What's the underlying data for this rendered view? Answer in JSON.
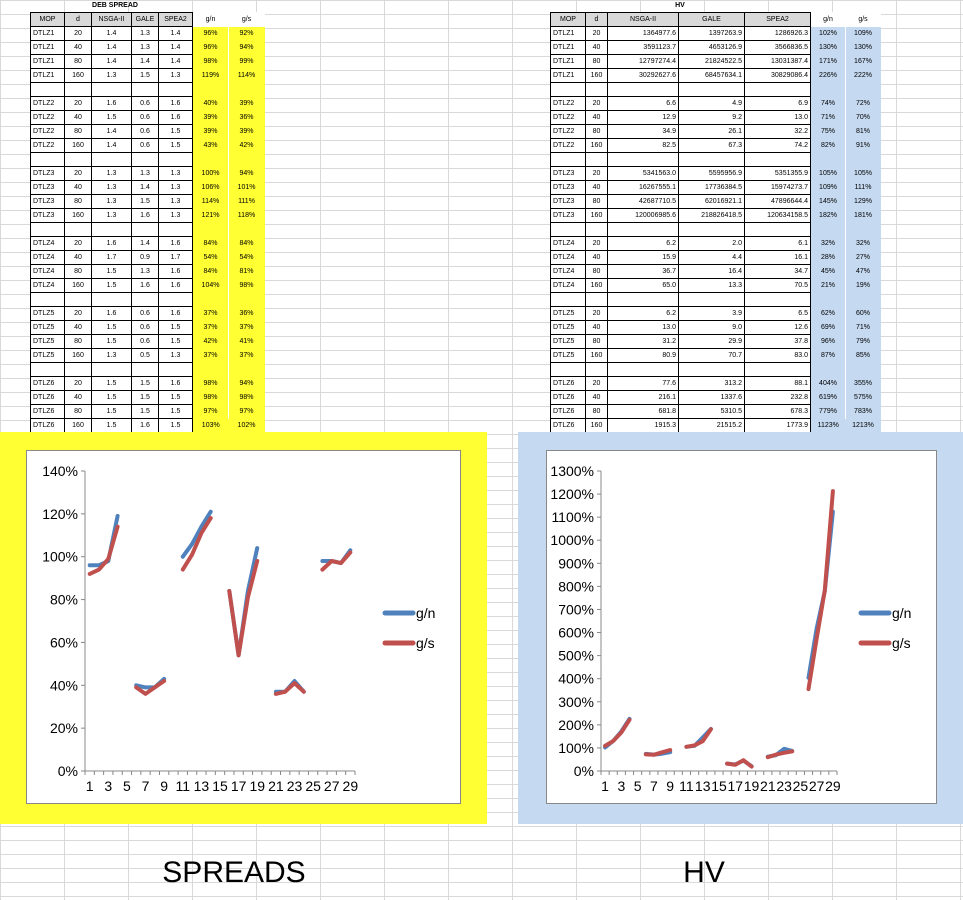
{
  "spread_table": {
    "title": "DEB SPREAD",
    "headers": [
      "MOP",
      "d",
      "NSGA-II",
      "GALE",
      "SPEA2",
      "g/n",
      "g/s"
    ],
    "groups": [
      [
        [
          "DTLZ1",
          "20",
          "1.4",
          "1.3",
          "1.4",
          "96%",
          "92%"
        ],
        [
          "DTLZ1",
          "40",
          "1.4",
          "1.3",
          "1.4",
          "96%",
          "94%"
        ],
        [
          "DTLZ1",
          "80",
          "1.4",
          "1.4",
          "1.4",
          "98%",
          "99%"
        ],
        [
          "DTLZ1",
          "160",
          "1.3",
          "1.5",
          "1.3",
          "119%",
          "114%"
        ]
      ],
      [
        [
          "DTLZ2",
          "20",
          "1.6",
          "0.6",
          "1.6",
          "40%",
          "39%"
        ],
        [
          "DTLZ2",
          "40",
          "1.5",
          "0.6",
          "1.6",
          "39%",
          "36%"
        ],
        [
          "DTLZ2",
          "80",
          "1.4",
          "0.6",
          "1.5",
          "39%",
          "39%"
        ],
        [
          "DTLZ2",
          "160",
          "1.4",
          "0.6",
          "1.5",
          "43%",
          "42%"
        ]
      ],
      [
        [
          "DTLZ3",
          "20",
          "1.3",
          "1.3",
          "1.3",
          "100%",
          "94%"
        ],
        [
          "DTLZ3",
          "40",
          "1.3",
          "1.4",
          "1.3",
          "106%",
          "101%"
        ],
        [
          "DTLZ3",
          "80",
          "1.3",
          "1.5",
          "1.3",
          "114%",
          "111%"
        ],
        [
          "DTLZ3",
          "160",
          "1.3",
          "1.6",
          "1.3",
          "121%",
          "118%"
        ]
      ],
      [
        [
          "DTLZ4",
          "20",
          "1.6",
          "1.4",
          "1.6",
          "84%",
          "84%"
        ],
        [
          "DTLZ4",
          "40",
          "1.7",
          "0.9",
          "1.7",
          "54%",
          "54%"
        ],
        [
          "DTLZ4",
          "80",
          "1.5",
          "1.3",
          "1.6",
          "84%",
          "81%"
        ],
        [
          "DTLZ4",
          "160",
          "1.5",
          "1.6",
          "1.6",
          "104%",
          "98%"
        ]
      ],
      [
        [
          "DTLZ5",
          "20",
          "1.6",
          "0.6",
          "1.6",
          "37%",
          "36%"
        ],
        [
          "DTLZ5",
          "40",
          "1.5",
          "0.6",
          "1.5",
          "37%",
          "37%"
        ],
        [
          "DTLZ5",
          "80",
          "1.5",
          "0.6",
          "1.5",
          "42%",
          "41%"
        ],
        [
          "DTLZ5",
          "160",
          "1.3",
          "0.5",
          "1.3",
          "37%",
          "37%"
        ]
      ],
      [
        [
          "DTLZ6",
          "20",
          "1.5",
          "1.5",
          "1.6",
          "98%",
          "94%"
        ],
        [
          "DTLZ6",
          "40",
          "1.5",
          "1.5",
          "1.5",
          "98%",
          "98%"
        ],
        [
          "DTLZ6",
          "80",
          "1.5",
          "1.5",
          "1.5",
          "97%",
          "97%"
        ],
        [
          "DTLZ6",
          "160",
          "1.5",
          "1.6",
          "1.5",
          "103%",
          "102%"
        ]
      ]
    ]
  },
  "hv_table": {
    "title": "HV",
    "headers": [
      "MOP",
      "d",
      "NSGA-II",
      "GALE",
      "SPEA2",
      "g/n",
      "g/s"
    ],
    "groups": [
      [
        [
          "DTLZ1",
          "20",
          "1364977.6",
          "1397263.9",
          "1286926.3",
          "102%",
          "109%"
        ],
        [
          "DTLZ1",
          "40",
          "3591123.7",
          "4653126.9",
          "3566836.5",
          "130%",
          "130%"
        ],
        [
          "DTLZ1",
          "80",
          "12797274.4",
          "21824522.5",
          "13031387.4",
          "171%",
          "167%"
        ],
        [
          "DTLZ1",
          "160",
          "30292627.6",
          "68457634.1",
          "30829086.4",
          "226%",
          "222%"
        ]
      ],
      [
        [
          "DTLZ2",
          "20",
          "6.6",
          "4.9",
          "6.9",
          "74%",
          "72%"
        ],
        [
          "DTLZ2",
          "40",
          "12.9",
          "9.2",
          "13.0",
          "71%",
          "70%"
        ],
        [
          "DTLZ2",
          "80",
          "34.9",
          "26.1",
          "32.2",
          "75%",
          "81%"
        ],
        [
          "DTLZ2",
          "160",
          "82.5",
          "67.3",
          "74.2",
          "82%",
          "91%"
        ]
      ],
      [
        [
          "DTLZ3",
          "20",
          "5341563.0",
          "5595956.9",
          "5351355.9",
          "105%",
          "105%"
        ],
        [
          "DTLZ3",
          "40",
          "16267555.1",
          "17736384.5",
          "15974273.7",
          "109%",
          "111%"
        ],
        [
          "DTLZ3",
          "80",
          "42687710.5",
          "62016921.1",
          "47896644.4",
          "145%",
          "129%"
        ],
        [
          "DTLZ3",
          "160",
          "120006985.6",
          "218826418.5",
          "120634158.5",
          "182%",
          "181%"
        ]
      ],
      [
        [
          "DTLZ4",
          "20",
          "6.2",
          "2.0",
          "6.1",
          "32%",
          "32%"
        ],
        [
          "DTLZ4",
          "40",
          "15.9",
          "4.4",
          "16.1",
          "28%",
          "27%"
        ],
        [
          "DTLZ4",
          "80",
          "36.7",
          "16.4",
          "34.7",
          "45%",
          "47%"
        ],
        [
          "DTLZ4",
          "160",
          "65.0",
          "13.3",
          "70.5",
          "21%",
          "19%"
        ]
      ],
      [
        [
          "DTLZ5",
          "20",
          "6.2",
          "3.9",
          "6.5",
          "62%",
          "60%"
        ],
        [
          "DTLZ5",
          "40",
          "13.0",
          "9.0",
          "12.6",
          "69%",
          "71%"
        ],
        [
          "DTLZ5",
          "80",
          "31.2",
          "29.9",
          "37.8",
          "96%",
          "79%"
        ],
        [
          "DTLZ5",
          "160",
          "80.9",
          "70.7",
          "83.0",
          "87%",
          "85%"
        ]
      ],
      [
        [
          "DTLZ6",
          "20",
          "77.6",
          "313.2",
          "88.1",
          "404%",
          "355%"
        ],
        [
          "DTLZ6",
          "40",
          "216.1",
          "1337.6",
          "232.8",
          "619%",
          "575%"
        ],
        [
          "DTLZ6",
          "80",
          "681.8",
          "5310.5",
          "678.3",
          "779%",
          "783%"
        ],
        [
          "DTLZ6",
          "160",
          "1915.3",
          "21515.2",
          "1773.9",
          "1123%",
          "1213%"
        ]
      ]
    ]
  },
  "labels": {
    "spreads": "SPREADS",
    "hv": "HV"
  },
  "colors": {
    "yellow": "#ffff33",
    "blue_panel": "#c5d9f1",
    "series_gn": "#4f81bd",
    "series_gs": "#c0504d"
  },
  "chart_data": [
    {
      "type": "line",
      "x": [
        1,
        2,
        3,
        4,
        5,
        6,
        7,
        8,
        9,
        10,
        11,
        12,
        13,
        14,
        15,
        16,
        17,
        18,
        19,
        20,
        21,
        22,
        23,
        24,
        25,
        26,
        27,
        28,
        29
      ],
      "x_tick_labels": [
        "1",
        "3",
        "5",
        "7",
        "9",
        "11",
        "13",
        "15",
        "17",
        "19",
        "21",
        "23",
        "25",
        "27",
        "29"
      ],
      "y_tick_labels": [
        "0%",
        "20%",
        "40%",
        "60%",
        "80%",
        "100%",
        "120%",
        "140%"
      ],
      "ylim": [
        0,
        1.4
      ],
      "legend_position": "right",
      "series": [
        {
          "name": "g/n",
          "values": [
            0.96,
            0.96,
            0.98,
            1.19,
            null,
            0.4,
            0.39,
            0.39,
            0.43,
            null,
            1.0,
            1.06,
            1.14,
            1.21,
            null,
            0.84,
            0.54,
            0.84,
            1.04,
            null,
            0.37,
            0.37,
            0.42,
            0.37,
            null,
            0.98,
            0.98,
            0.97,
            1.03
          ]
        },
        {
          "name": "g/s",
          "values": [
            0.92,
            0.94,
            0.99,
            1.14,
            null,
            0.39,
            0.36,
            0.39,
            0.42,
            null,
            0.94,
            1.01,
            1.11,
            1.18,
            null,
            0.84,
            0.54,
            0.81,
            0.98,
            null,
            0.36,
            0.37,
            0.41,
            0.37,
            null,
            0.94,
            0.98,
            0.97,
            1.02
          ]
        }
      ]
    },
    {
      "type": "line",
      "x": [
        1,
        2,
        3,
        4,
        5,
        6,
        7,
        8,
        9,
        10,
        11,
        12,
        13,
        14,
        15,
        16,
        17,
        18,
        19,
        20,
        21,
        22,
        23,
        24,
        25,
        26,
        27,
        28,
        29
      ],
      "x_tick_labels": [
        "1",
        "3",
        "5",
        "7",
        "9",
        "11",
        "13",
        "15",
        "17",
        "19",
        "21",
        "23",
        "25",
        "27",
        "29"
      ],
      "y_tick_labels": [
        "0%",
        "100%",
        "200%",
        "300%",
        "400%",
        "500%",
        "600%",
        "700%",
        "800%",
        "900%",
        "1000%",
        "1100%",
        "1200%",
        "1300%"
      ],
      "ylim": [
        0,
        13
      ],
      "legend_position": "right",
      "series": [
        {
          "name": "g/n",
          "values": [
            1.02,
            1.3,
            1.71,
            2.26,
            null,
            0.74,
            0.71,
            0.75,
            0.82,
            null,
            1.05,
            1.09,
            1.45,
            1.82,
            null,
            0.32,
            0.28,
            0.45,
            0.21,
            null,
            0.62,
            0.69,
            0.96,
            0.87,
            null,
            4.04,
            6.19,
            7.79,
            11.23
          ]
        },
        {
          "name": "g/s",
          "values": [
            1.09,
            1.3,
            1.67,
            2.22,
            null,
            0.72,
            0.7,
            0.81,
            0.91,
            null,
            1.05,
            1.11,
            1.29,
            1.81,
            null,
            0.32,
            0.27,
            0.47,
            0.19,
            null,
            0.6,
            0.71,
            0.79,
            0.85,
            null,
            3.55,
            5.75,
            7.83,
            12.13
          ]
        }
      ]
    }
  ]
}
